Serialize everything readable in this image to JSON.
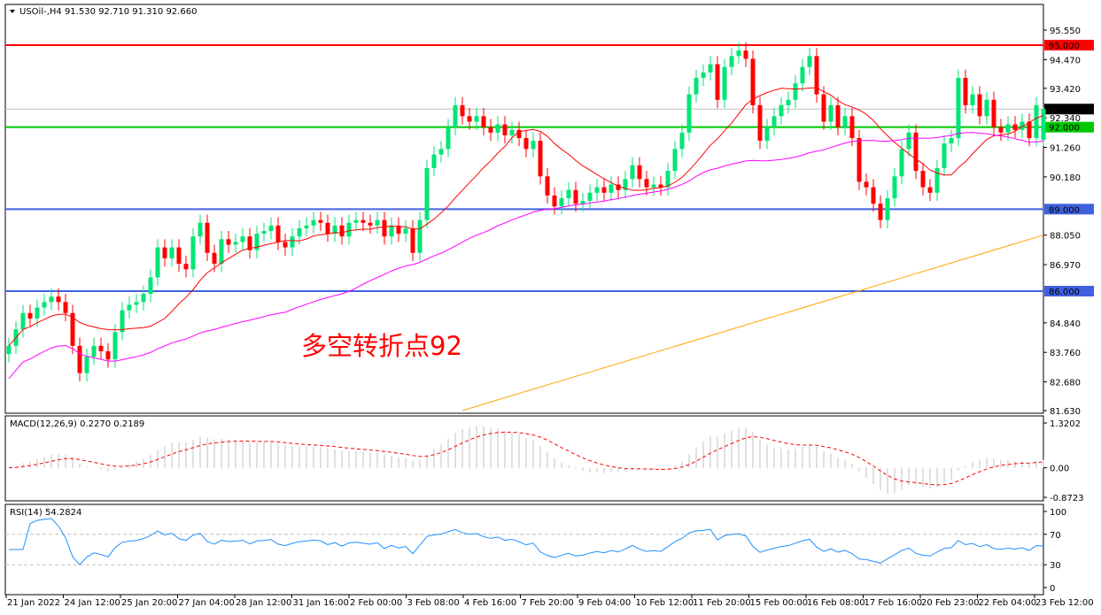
{
  "header": {
    "symbol": "USOil-,H4",
    "ohlc_text": "91.530 92.710 91.310 92.660"
  },
  "annotation": "多空转折点92",
  "colors": {
    "bull": "#00e676",
    "bear": "#ff0000",
    "ma_fast": "#ff0000",
    "ma_mid": "#ff00ff",
    "ma_slow": "#ffa500",
    "level_red": "#ff0000",
    "level_green": "#00c800",
    "level_blue": "#4060e0",
    "macd_hist": "#c0c0c0",
    "macd_signal": "#ff0000",
    "rsi": "#1e90ff"
  },
  "chart_data": {
    "type": "candlestick",
    "timeframe": "H4",
    "ylim": [
      81.63,
      95.55
    ],
    "y_ticks": [
      "95.550",
      "94.470",
      "93.420",
      "92.340",
      "91.260",
      "90.180",
      "88.050",
      "86.970",
      "84.840",
      "83.760",
      "82.680",
      "81.630"
    ],
    "x_ticks": [
      "21 Jan 2022",
      "24 Jan 12:00",
      "25 Jan 20:00",
      "27 Jan 04:00",
      "28 Jan 12:00",
      "31 Jan 16:00",
      "2 Feb 00:00",
      "3 Feb 08:00",
      "4 Feb 16:00",
      "7 Feb 20:00",
      "9 Feb 04:00",
      "10 Feb 12:00",
      "11 Feb 20:00",
      "15 Feb 00:00",
      "16 Feb 08:00",
      "17 Feb 16:00",
      "20 Feb 23:00",
      "22 Feb 04:00",
      "23 Feb 12:00"
    ],
    "closes": [
      84.0,
      84.6,
      85.2,
      85.0,
      85.4,
      85.6,
      85.8,
      85.6,
      85.2,
      84.0,
      83.0,
      83.6,
      84.0,
      83.8,
      83.5,
      84.5,
      85.3,
      85.5,
      85.6,
      85.9,
      86.5,
      87.6,
      87.2,
      87.6,
      87.0,
      86.8,
      88.0,
      88.5,
      87.4,
      87.0,
      87.9,
      87.7,
      87.8,
      88.0,
      87.5,
      88.1,
      88.2,
      88.4,
      87.8,
      87.6,
      88.0,
      88.3,
      88.4,
      88.6,
      88.5,
      88.1,
      88.4,
      88.0,
      88.5,
      88.6,
      88.5,
      88.4,
      88.6,
      88.0,
      88.4,
      88.1,
      88.3,
      87.4,
      88.6,
      90.5,
      91.0,
      91.2,
      92.0,
      92.8,
      92.4,
      92.2,
      92.4,
      92.0,
      91.8,
      92.1,
      91.7,
      91.9,
      91.6,
      91.2,
      91.5,
      90.2,
      89.5,
      89.1,
      89.4,
      89.7,
      89.2,
      89.3,
      89.6,
      89.8,
      89.6,
      89.9,
      89.7,
      90.1,
      90.6,
      90.1,
      89.8,
      89.9,
      89.8,
      90.4,
      91.2,
      91.8,
      93.2,
      93.8,
      94.0,
      94.3,
      93.0,
      94.2,
      94.6,
      94.8,
      94.5,
      92.8,
      91.5,
      92.0,
      92.4,
      92.8,
      93.0,
      93.6,
      94.2,
      94.6,
      93.2,
      92.2,
      92.8,
      92.0,
      92.4,
      91.6,
      90.0,
      89.8,
      89.2,
      88.6,
      89.4,
      90.2,
      91.2,
      91.8,
      90.4,
      89.8,
      89.6,
      90.5,
      91.4,
      91.6,
      93.8,
      92.8,
      93.2,
      92.4,
      93.0,
      92.0,
      91.8,
      92.1,
      91.9,
      92.2,
      91.6,
      92.8,
      92.66
    ],
    "last_candle": {
      "open": 91.53,
      "high": 92.71,
      "low": 91.31,
      "close": 92.66
    },
    "ma_slow_line": {
      "start": [
        64,
        81.63
      ],
      "end": [
        146,
        88.05
      ]
    },
    "levels": [
      {
        "price": 95.0,
        "label": "95.000",
        "color": "#ff0000"
      },
      {
        "price": 92.0,
        "label": "92.000",
        "color": "#00c800"
      },
      {
        "price": 89.0,
        "label": "89.000",
        "color": "#4060e0"
      },
      {
        "price": 86.0,
        "label": "86.000",
        "color": "#4060e0"
      }
    ],
    "current_price": {
      "price": 92.66,
      "label": "92.660"
    },
    "macd": {
      "title": "MACD(12,26,9) 0.2270 0.2189",
      "ylim": [
        -0.8723,
        1.3202
      ],
      "ticks": [
        "1.3202",
        "0.00",
        "-0.8723"
      ]
    },
    "rsi": {
      "title": "RSI(14) 54.2824",
      "ylim": [
        0,
        100
      ],
      "ticks": [
        "100",
        "70",
        "30",
        "0"
      ],
      "levels": [
        70,
        30
      ]
    }
  }
}
